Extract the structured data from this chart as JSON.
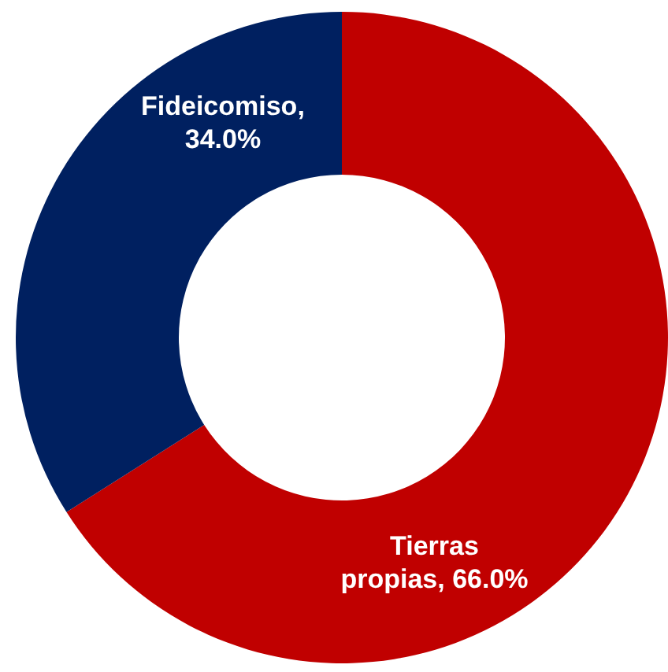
{
  "chart_data": {
    "type": "donut",
    "categories": [
      "Tierras propias",
      "Fideicomiso"
    ],
    "values": [
      66,
      34
    ],
    "colors": [
      "#c00000",
      "#002060"
    ],
    "value_labels": [
      ", 66.0%",
      ", 34.0%"
    ],
    "legend": false
  }
}
